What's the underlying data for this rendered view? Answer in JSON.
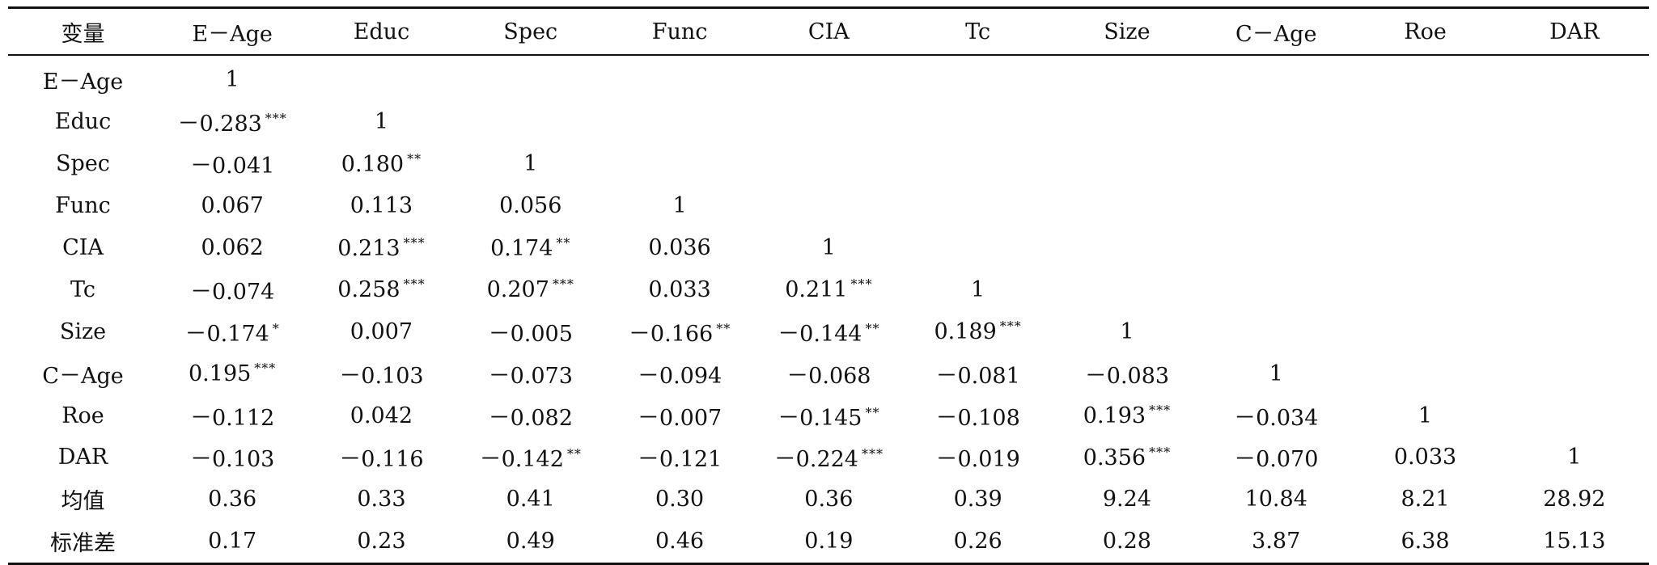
{
  "table": {
    "headers": [
      "变量",
      "E－Age",
      "Educ",
      "Spec",
      "Func",
      "CIA",
      "Tc",
      "Size",
      "C－Age",
      "Roe",
      "DAR"
    ],
    "rows": [
      {
        "label": "E－Age",
        "cells": [
          {
            "v": "1",
            "s": ""
          }
        ]
      },
      {
        "label": "Educ",
        "cells": [
          {
            "v": "－0.283",
            "s": "***"
          },
          {
            "v": "1",
            "s": ""
          }
        ]
      },
      {
        "label": "Spec",
        "cells": [
          {
            "v": "－0.041",
            "s": ""
          },
          {
            "v": "0.180",
            "s": "**"
          },
          {
            "v": "1",
            "s": ""
          }
        ]
      },
      {
        "label": "Func",
        "cells": [
          {
            "v": "0.067",
            "s": ""
          },
          {
            "v": "0.113",
            "s": ""
          },
          {
            "v": "0.056",
            "s": ""
          },
          {
            "v": "1",
            "s": ""
          }
        ]
      },
      {
        "label": "CIA",
        "cells": [
          {
            "v": "0.062",
            "s": ""
          },
          {
            "v": "0.213",
            "s": "***"
          },
          {
            "v": "0.174",
            "s": "**"
          },
          {
            "v": "0.036",
            "s": ""
          },
          {
            "v": "1",
            "s": ""
          }
        ]
      },
      {
        "label": "Tc",
        "cells": [
          {
            "v": "－0.074",
            "s": ""
          },
          {
            "v": "0.258",
            "s": "***"
          },
          {
            "v": "0.207",
            "s": "***"
          },
          {
            "v": "0.033",
            "s": ""
          },
          {
            "v": "0.211",
            "s": "***"
          },
          {
            "v": "1",
            "s": ""
          }
        ]
      },
      {
        "label": "Size",
        "cells": [
          {
            "v": "－0.174",
            "s": "*"
          },
          {
            "v": "0.007",
            "s": ""
          },
          {
            "v": "－0.005",
            "s": ""
          },
          {
            "v": "－0.166",
            "s": "**"
          },
          {
            "v": "－0.144",
            "s": "**"
          },
          {
            "v": "0.189",
            "s": "***"
          },
          {
            "v": "1",
            "s": ""
          }
        ]
      },
      {
        "label": "C－Age",
        "cells": [
          {
            "v": "0.195",
            "s": "***"
          },
          {
            "v": "－0.103",
            "s": ""
          },
          {
            "v": "－0.073",
            "s": ""
          },
          {
            "v": "－0.094",
            "s": ""
          },
          {
            "v": "－0.068",
            "s": ""
          },
          {
            "v": "－0.081",
            "s": ""
          },
          {
            "v": "－0.083",
            "s": ""
          },
          {
            "v": "1",
            "s": ""
          }
        ]
      },
      {
        "label": "Roe",
        "cells": [
          {
            "v": "－0.112",
            "s": ""
          },
          {
            "v": "0.042",
            "s": ""
          },
          {
            "v": "－0.082",
            "s": ""
          },
          {
            "v": "－0.007",
            "s": ""
          },
          {
            "v": "－0.145",
            "s": "**"
          },
          {
            "v": "－0.108",
            "s": ""
          },
          {
            "v": "0.193",
            "s": "***"
          },
          {
            "v": "－0.034",
            "s": ""
          },
          {
            "v": "1",
            "s": ""
          }
        ]
      },
      {
        "label": "DAR",
        "cells": [
          {
            "v": "－0.103",
            "s": ""
          },
          {
            "v": "－0.116",
            "s": ""
          },
          {
            "v": "－0.142",
            "s": "**"
          },
          {
            "v": "－0.121",
            "s": ""
          },
          {
            "v": "－0.224",
            "s": "***"
          },
          {
            "v": "－0.019",
            "s": ""
          },
          {
            "v": "0.356",
            "s": "***"
          },
          {
            "v": "－0.070",
            "s": ""
          },
          {
            "v": "0.033",
            "s": ""
          },
          {
            "v": "1",
            "s": ""
          }
        ]
      },
      {
        "label": "均值",
        "cells": [
          {
            "v": "0.36",
            "s": ""
          },
          {
            "v": "0.33",
            "s": ""
          },
          {
            "v": "0.41",
            "s": ""
          },
          {
            "v": "0.30",
            "s": ""
          },
          {
            "v": "0.36",
            "s": ""
          },
          {
            "v": "0.39",
            "s": ""
          },
          {
            "v": "9.24",
            "s": ""
          },
          {
            "v": "10.84",
            "s": ""
          },
          {
            "v": "8.21",
            "s": ""
          },
          {
            "v": "28.92",
            "s": ""
          }
        ]
      },
      {
        "label": "标准差",
        "cells": [
          {
            "v": "0.17",
            "s": ""
          },
          {
            "v": "0.23",
            "s": ""
          },
          {
            "v": "0.49",
            "s": ""
          },
          {
            "v": "0.46",
            "s": ""
          },
          {
            "v": "0.19",
            "s": ""
          },
          {
            "v": "0.26",
            "s": ""
          },
          {
            "v": "0.28",
            "s": ""
          },
          {
            "v": "3.87",
            "s": ""
          },
          {
            "v": "6.38",
            "s": ""
          },
          {
            "v": "15.13",
            "s": ""
          }
        ]
      }
    ]
  }
}
